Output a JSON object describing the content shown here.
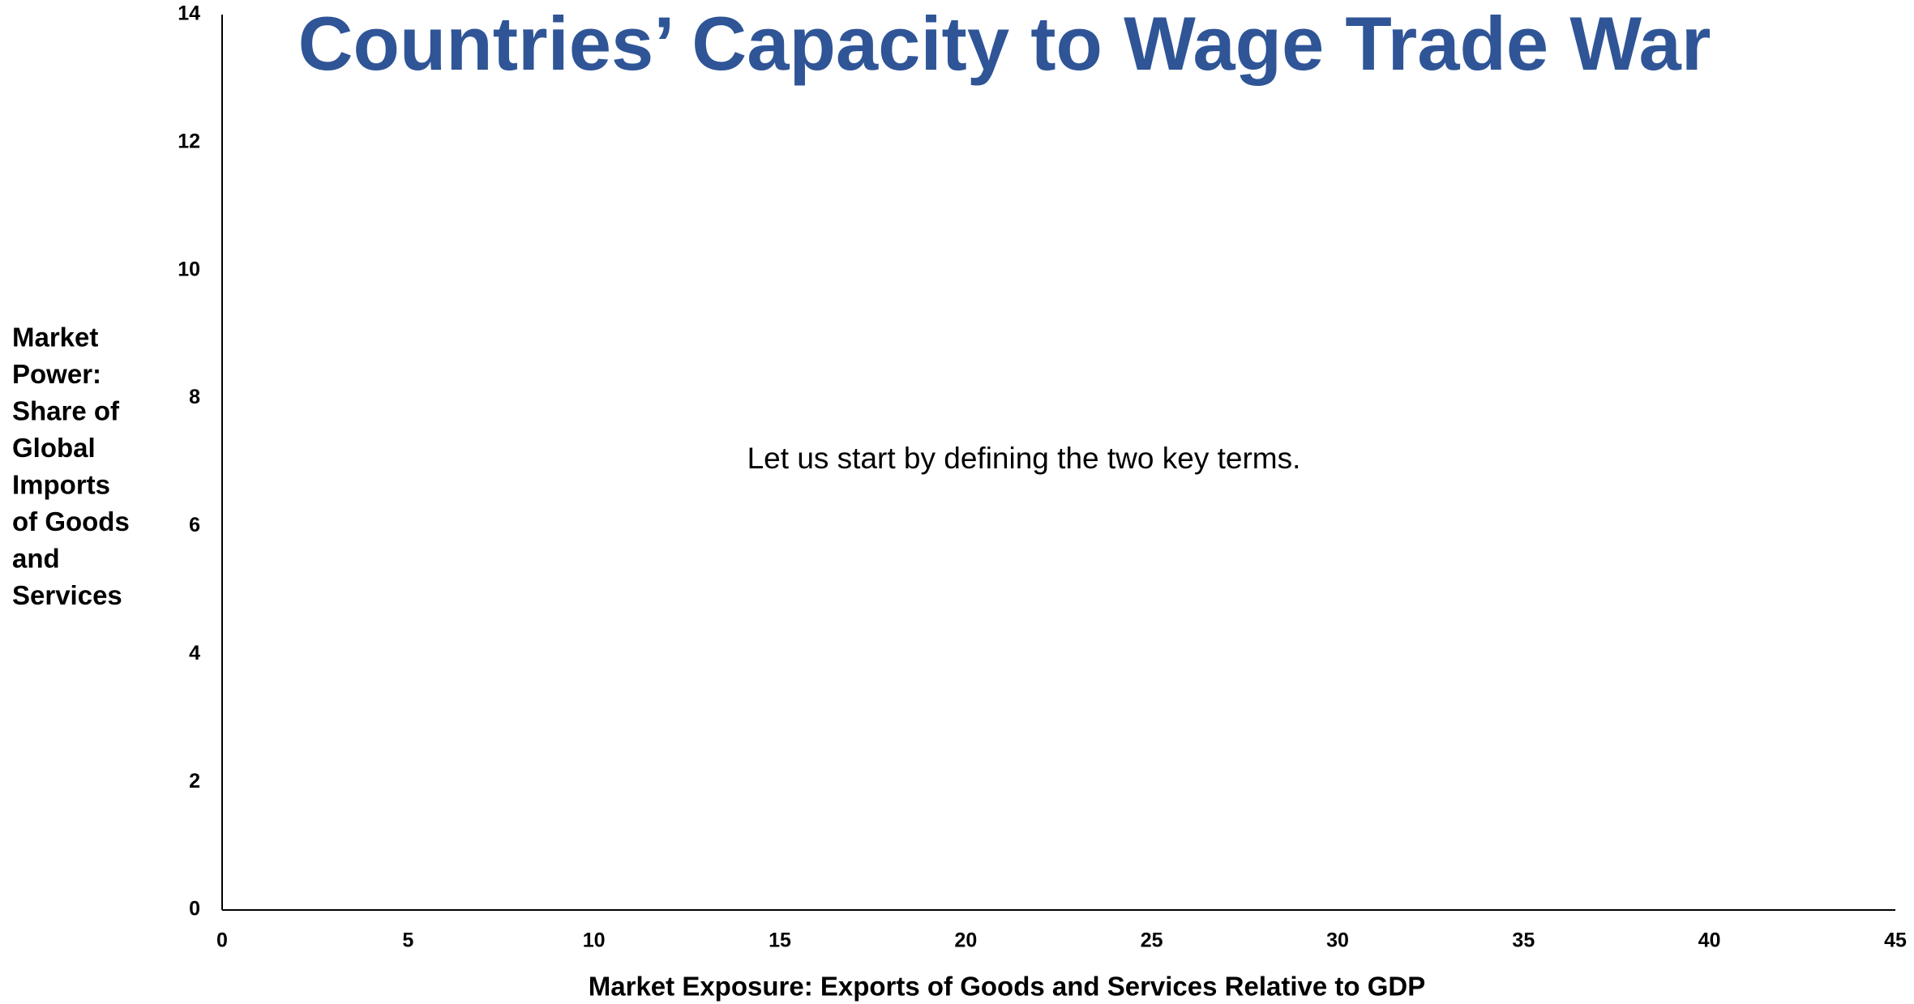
{
  "chart_data": {
    "type": "scatter",
    "title": "Countries’ Capacity to Wage Trade War",
    "annotation": "Let us start by defining the two key terms.",
    "xlabel": "Market Exposure: Exports of Goods and Services Relative to GDP",
    "ylabel": [
      "Market",
      "Power:",
      "Share of",
      "Global",
      "Imports",
      "of Goods",
      "and",
      "Services"
    ],
    "series": [],
    "xlim": [
      0,
      45
    ],
    "xticks": [
      0,
      5,
      10,
      15,
      20,
      25,
      30,
      35,
      40,
      45
    ],
    "ylim": [
      0,
      14
    ],
    "yticks": [
      0,
      2,
      4,
      6,
      8,
      10,
      12,
      14
    ],
    "grid": false,
    "title_color": "#2f5597"
  }
}
